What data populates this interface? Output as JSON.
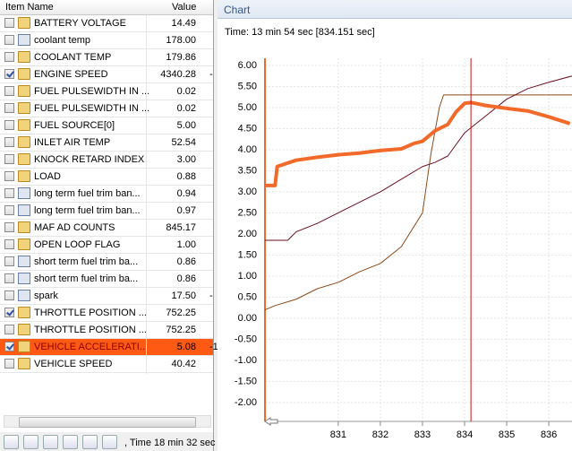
{
  "table": {
    "headers": [
      "Item Name",
      "Value"
    ],
    "rows": [
      {
        "name": "BATTERY VOLTAGE",
        "value": "14.49",
        "checked": false,
        "icon": "folder"
      },
      {
        "name": "coolant temp",
        "value": "178.00",
        "checked": false,
        "icon": "pid"
      },
      {
        "name": "COOLANT TEMP",
        "value": "179.86",
        "checked": false,
        "icon": "folder"
      },
      {
        "name": "ENGINE SPEED",
        "value": "4340.28",
        "checked": true,
        "icon": "folder",
        "extra": "-"
      },
      {
        "name": "FUEL PULSEWIDTH IN ...",
        "value": "0.02",
        "checked": false,
        "icon": "folder"
      },
      {
        "name": "FUEL PULSEWIDTH IN ...",
        "value": "0.02",
        "checked": false,
        "icon": "folder"
      },
      {
        "name": "FUEL SOURCE[0]",
        "value": "5.00",
        "checked": false,
        "icon": "folder"
      },
      {
        "name": "INLET AIR TEMP",
        "value": "52.54",
        "checked": false,
        "icon": "folder"
      },
      {
        "name": "KNOCK RETARD INDEX",
        "value": "3.00",
        "checked": false,
        "icon": "folder"
      },
      {
        "name": "LOAD",
        "value": "0.88",
        "checked": false,
        "icon": "folder"
      },
      {
        "name": "long term fuel trim ban...",
        "value": "0.94",
        "checked": false,
        "icon": "pid"
      },
      {
        "name": "long term fuel trim ban...",
        "value": "0.97",
        "checked": false,
        "icon": "pid"
      },
      {
        "name": "MAF AD COUNTS",
        "value": "845.17",
        "checked": false,
        "icon": "folder"
      },
      {
        "name": "OPEN LOOP FLAG",
        "value": "1.00",
        "checked": false,
        "icon": "folder"
      },
      {
        "name": "short term fuel trim ba...",
        "value": "0.86",
        "checked": false,
        "icon": "pid"
      },
      {
        "name": "short term fuel trim ba...",
        "value": "0.86",
        "checked": false,
        "icon": "pid"
      },
      {
        "name": "spark",
        "value": "17.50",
        "checked": false,
        "icon": "pid",
        "extra": "-"
      },
      {
        "name": "THROTTLE POSITION ...",
        "value": "752.25",
        "checked": true,
        "icon": "folder"
      },
      {
        "name": "THROTTLE POSITION ...",
        "value": "752.25",
        "checked": false,
        "icon": "folder"
      },
      {
        "name": "VEHICLE ACCELERATI...",
        "value": "5.08",
        "checked": true,
        "icon": "folder",
        "extra": "-1",
        "selected": true
      },
      {
        "name": "VEHICLE SPEED",
        "value": "40.42",
        "checked": false,
        "icon": "folder"
      }
    ]
  },
  "status": ", Time 18 min 32 sec",
  "panel_title": "Chart",
  "chart_data": {
    "type": "line",
    "time_label": "Time: 13 min 54 sec [834.151 sec]",
    "cursor_x": 834.151,
    "cursor_color": "#c81010",
    "xlim": [
      829.26,
      836.55
    ],
    "ylim": [
      -2.45,
      6.17
    ],
    "xticks": [
      831,
      832,
      833,
      834,
      835,
      836
    ],
    "yticks": [
      {
        "value": 6,
        "label": "6.00"
      },
      {
        "value": 5.5,
        "label": "5.50"
      },
      {
        "value": 5,
        "label": "5.00"
      },
      {
        "value": 4.5,
        "label": "4.50"
      },
      {
        "value": 4,
        "label": "4.00"
      },
      {
        "value": 3.5,
        "label": "3.50"
      },
      {
        "value": 3,
        "label": "3.00"
      },
      {
        "value": 2.5,
        "label": "2.50"
      },
      {
        "value": 2,
        "label": "2.00"
      },
      {
        "value": 1.5,
        "label": "1.50"
      },
      {
        "value": 1,
        "label": "1.00"
      },
      {
        "value": 0.5,
        "label": "0.50"
      },
      {
        "value": 0,
        "label": "0.00"
      },
      {
        "value": -0.5,
        "label": "-0.50"
      },
      {
        "value": -1,
        "label": "-1.00"
      },
      {
        "value": -1.5,
        "label": "-1.50"
      },
      {
        "value": -2,
        "label": "-2.00"
      }
    ],
    "grid": true,
    "axis_color": "#f26a2a",
    "series": [
      {
        "color": "#8b4a1a",
        "width": 1,
        "x": [
          829.26,
          829.5,
          830,
          830.5,
          831,
          831.5,
          832,
          832.5,
          833,
          833.2,
          833.4,
          833.5,
          834.5,
          835.5,
          836.55
        ],
        "values": [
          0.2,
          0.3,
          0.45,
          0.7,
          0.85,
          1.1,
          1.3,
          1.7,
          2.5,
          3.9,
          5.0,
          5.3,
          5.3,
          5.3,
          5.3
        ]
      },
      {
        "color": "#6b1020",
        "width": 1,
        "x": [
          829.26,
          829.8,
          830,
          830.5,
          831,
          831.5,
          832,
          832.5,
          833,
          833.3,
          833.6,
          834,
          834.5,
          835,
          835.5,
          836,
          836.55
        ],
        "values": [
          1.85,
          1.85,
          2.05,
          2.25,
          2.5,
          2.75,
          3.0,
          3.3,
          3.6,
          3.7,
          3.85,
          4.4,
          4.8,
          5.2,
          5.45,
          5.6,
          5.75
        ]
      },
      {
        "color": "#f26a2a",
        "width": 4,
        "x": [
          829.26,
          829.5,
          829.55,
          830,
          830.5,
          831,
          831.5,
          832,
          832.5,
          832.8,
          833,
          833.3,
          833.6,
          833.8,
          834,
          834.15,
          834.5,
          835,
          835.5,
          836,
          836.5
        ],
        "values": [
          3.15,
          3.15,
          3.6,
          3.75,
          3.82,
          3.88,
          3.92,
          3.98,
          4.02,
          4.15,
          4.2,
          4.45,
          4.6,
          4.9,
          5.1,
          5.12,
          5.05,
          4.98,
          4.92,
          4.78,
          4.62
        ]
      }
    ]
  }
}
